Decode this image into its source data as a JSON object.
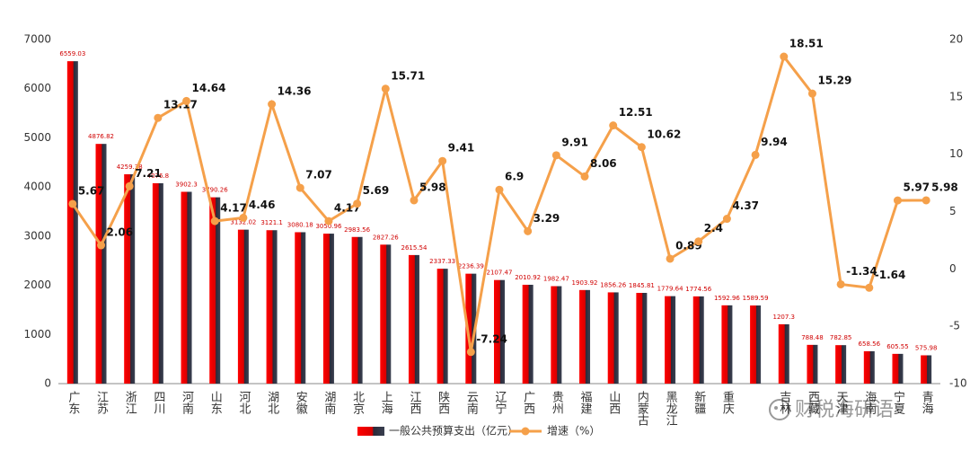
{
  "chart_data": {
    "type": "bar-line",
    "categories": [
      "广东",
      "江苏",
      "浙江",
      "四川",
      "河南",
      "山东",
      "河北",
      "湖北",
      "安徽",
      "湖南",
      "北京",
      "上海",
      "江西",
      "陕西",
      "云南",
      "辽宁",
      "广西",
      "贵州",
      "福建",
      "山西",
      "内蒙古",
      "黑龙江",
      "新疆",
      "重庆",
      null,
      "吉林",
      "西藏",
      "天津",
      "海南",
      "宁夏",
      "青海"
    ],
    "series": [
      {
        "name": "一般公共预算支出（亿元）",
        "type": "bar",
        "color": "#e00000",
        "values": [
          6559.03,
          4876.82,
          4259.38,
          4076.8,
          3902.3,
          3790.26,
          3132.02,
          3121.1,
          3080.18,
          3050.96,
          2983.56,
          2827.26,
          2615.54,
          2337.33,
          2236.39,
          2107.47,
          2010.92,
          1982.47,
          1903.92,
          1856.26,
          1845.81,
          1779.64,
          1774.56,
          1592.96,
          1589.59,
          1207.3,
          788.48,
          782.85,
          658.56,
          605.55,
          575.98
        ]
      },
      {
        "name": "增速（%）",
        "type": "line",
        "axis": "y2",
        "color": "#f5a04a",
        "values": [
          5.67,
          2.06,
          7.21,
          13.17,
          14.64,
          4.17,
          4.46,
          14.36,
          7.07,
          4.17,
          5.69,
          15.71,
          5.98,
          9.41,
          -7.24,
          6.9,
          3.29,
          9.91,
          8.06,
          12.51,
          10.62,
          0.89,
          2.4,
          4.37,
          9.94,
          18.51,
          15.29,
          -1.34,
          -1.64,
          5.97,
          5.98
        ]
      }
    ],
    "ylim": [
      0,
      7000
    ],
    "yticks": [
      0,
      1000,
      2000,
      3000,
      4000,
      5000,
      6000,
      7000
    ],
    "y2lim": [
      -10,
      20
    ],
    "y2ticks": [
      -10,
      -5,
      0,
      5,
      10,
      15,
      20
    ],
    "grid": false,
    "legend": "bottom",
    "watermark": "财税海研语"
  }
}
